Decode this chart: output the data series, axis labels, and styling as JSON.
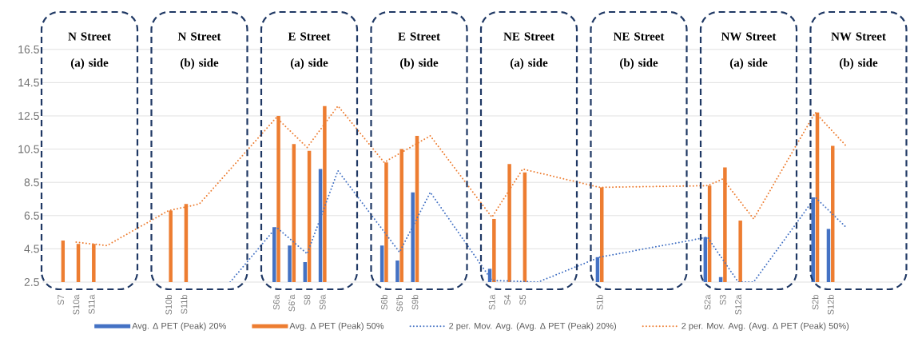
{
  "chart_data": {
    "type": "bar",
    "categories": [
      "S7",
      "S10a",
      "S11a",
      null,
      null,
      null,
      null,
      "S10b",
      "S11b",
      null,
      null,
      null,
      null,
      null,
      "S6a",
      "S6'a",
      "S8",
      "S9a",
      null,
      null,
      null,
      "S6b",
      "S6'b",
      "S9b",
      null,
      null,
      null,
      null,
      "S1a",
      "S4",
      "S5",
      null,
      null,
      null,
      null,
      "S1b",
      null,
      null,
      null,
      null,
      null,
      null,
      "S2a",
      "S3",
      "S12a",
      null,
      null,
      null,
      null,
      "S2b",
      "S12b",
      null
    ],
    "series": [
      {
        "name": "Avg. Δ PET (Peak) 20%",
        "color": "#4472c4",
        "values": [
          null,
          null,
          null,
          null,
          null,
          null,
          null,
          null,
          null,
          null,
          null,
          null,
          null,
          null,
          5.8,
          4.7,
          3.7,
          9.3,
          null,
          null,
          null,
          4.7,
          3.8,
          7.9,
          null,
          null,
          null,
          null,
          3.3,
          null,
          null,
          null,
          null,
          null,
          null,
          4.0,
          null,
          null,
          null,
          null,
          null,
          null,
          5.2,
          2.8,
          null,
          null,
          null,
          null,
          null,
          7.6,
          5.7,
          null
        ]
      },
      {
        "name": "Avg. Δ PET (Peak) 50%",
        "color": "#ed7d31",
        "values": [
          5.0,
          4.8,
          4.8,
          null,
          null,
          null,
          null,
          6.8,
          7.2,
          null,
          null,
          null,
          null,
          null,
          12.5,
          10.8,
          10.4,
          13.1,
          null,
          null,
          null,
          9.7,
          10.5,
          11.3,
          null,
          null,
          null,
          null,
          6.3,
          9.6,
          9.1,
          null,
          null,
          null,
          null,
          8.2,
          null,
          null,
          null,
          null,
          null,
          null,
          8.3,
          9.4,
          6.2,
          null,
          null,
          null,
          null,
          12.7,
          10.7,
          null
        ]
      },
      {
        "name": "2 per. Mov. Avg. (Avg. Δ PET (Peak) 20%)",
        "type": "line",
        "line_style": "dotted",
        "color": "#4472c4",
        "values": [
          null,
          null,
          null,
          null,
          null,
          null,
          null,
          null,
          null,
          null,
          null,
          2.5,
          null,
          null,
          5.8,
          null,
          4.2,
          null,
          9.2,
          null,
          null,
          null,
          4.3,
          null,
          7.9,
          null,
          null,
          null,
          2.6,
          null,
          null,
          2.5,
          null,
          null,
          null,
          4.0,
          null,
          null,
          null,
          null,
          null,
          null,
          5.2,
          null,
          2.5,
          2.5,
          null,
          null,
          null,
          7.6,
          null,
          5.8
        ]
      },
      {
        "name": "2 per. Mov. Avg. (Avg. Δ PET (Peak) 50%)",
        "type": "line",
        "line_style": "dotted",
        "color": "#ed7d31",
        "values": [
          null,
          4.9,
          4.8,
          4.7,
          null,
          null,
          null,
          6.8,
          7.0,
          7.2,
          null,
          null,
          null,
          null,
          12.4,
          null,
          10.6,
          null,
          13.1,
          null,
          null,
          9.7,
          null,
          null,
          11.3,
          null,
          null,
          null,
          6.4,
          null,
          9.3,
          null,
          null,
          null,
          null,
          8.2,
          null,
          null,
          null,
          null,
          null,
          null,
          8.3,
          8.7,
          null,
          6.3,
          null,
          null,
          null,
          12.7,
          null,
          10.7
        ]
      }
    ],
    "ylim": [
      2.5,
      16.5
    ],
    "yticks": [
      2.5,
      4.5,
      6.5,
      8.5,
      10.5,
      12.5,
      14.5,
      16.5
    ],
    "grid": "y",
    "legend": "bottom",
    "annotations": [
      "N Street (a) side",
      "N Street (b) side",
      "E Street (a) side",
      "E Street (b) side",
      "NE Street (a) side",
      "NE Street (b) side",
      "NW Street (a) side",
      "NW Street (b) side"
    ]
  }
}
